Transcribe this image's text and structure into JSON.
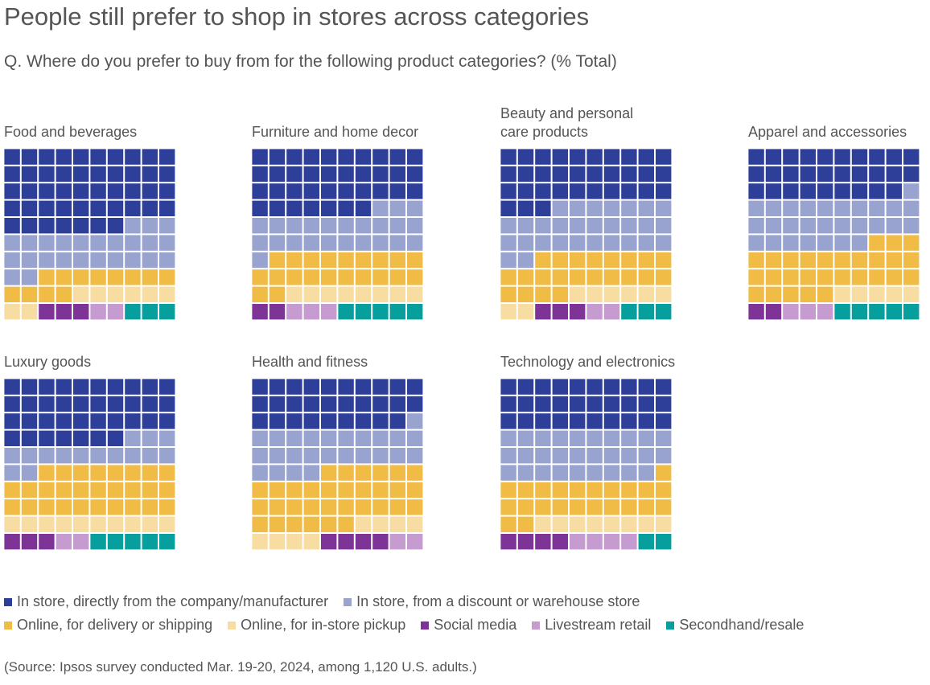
{
  "title": "People still prefer to shop in stores across categories",
  "subtitle": "Q. Where do you prefer to buy from for the following product categories? (% Total)",
  "source": "(Source: Ipsos survey conducted Mar. 19-20, 2024, among 1,120 U.S. adults.)",
  "chart_data": {
    "type": "waffle",
    "units_per_chart": 100,
    "series": [
      {
        "name": "In store, directly from the company/manufacturer",
        "color": "#2E3F9A"
      },
      {
        "name": "In store, from a discount or warehouse store",
        "color": "#98A3CF"
      },
      {
        "name": "Online, for delivery or shipping",
        "color": "#F0BC45"
      },
      {
        "name": "Online, for in-store pickup",
        "color": "#F8DDA2"
      },
      {
        "name": "Social media",
        "color": "#7E3496"
      },
      {
        "name": "Livestream retail",
        "color": "#C59BD0"
      },
      {
        "name": "Secondhand/resale",
        "color": "#079E9E"
      }
    ],
    "legend_rows": [
      [
        0,
        1
      ],
      [
        2,
        3,
        4,
        5,
        6
      ]
    ],
    "panels": [
      {
        "title": "Food and beverages",
        "values": [
          47,
          25,
          12,
          8,
          3,
          2,
          3
        ]
      },
      {
        "title": "Furniture and home decor",
        "values": [
          37,
          24,
          21,
          8,
          2,
          3,
          5
        ]
      },
      {
        "title": "Beauty and personal\ncare products",
        "values": [
          33,
          29,
          22,
          8,
          3,
          2,
          3
        ]
      },
      {
        "title": "Apparel and accessories",
        "values": [
          29,
          28,
          28,
          5,
          2,
          3,
          5
        ]
      },
      {
        "title": "Luxury goods",
        "values": [
          37,
          15,
          28,
          10,
          3,
          2,
          7
        ]
      },
      {
        "title": "Health and fitness",
        "values": [
          29,
          25,
          32,
          8,
          4,
          3,
          4
        ]
      },
      {
        "title": "Technology and electronics",
        "values": [
          30,
          29,
          23,
          8,
          4,
          4,
          2
        ]
      }
    ]
  }
}
